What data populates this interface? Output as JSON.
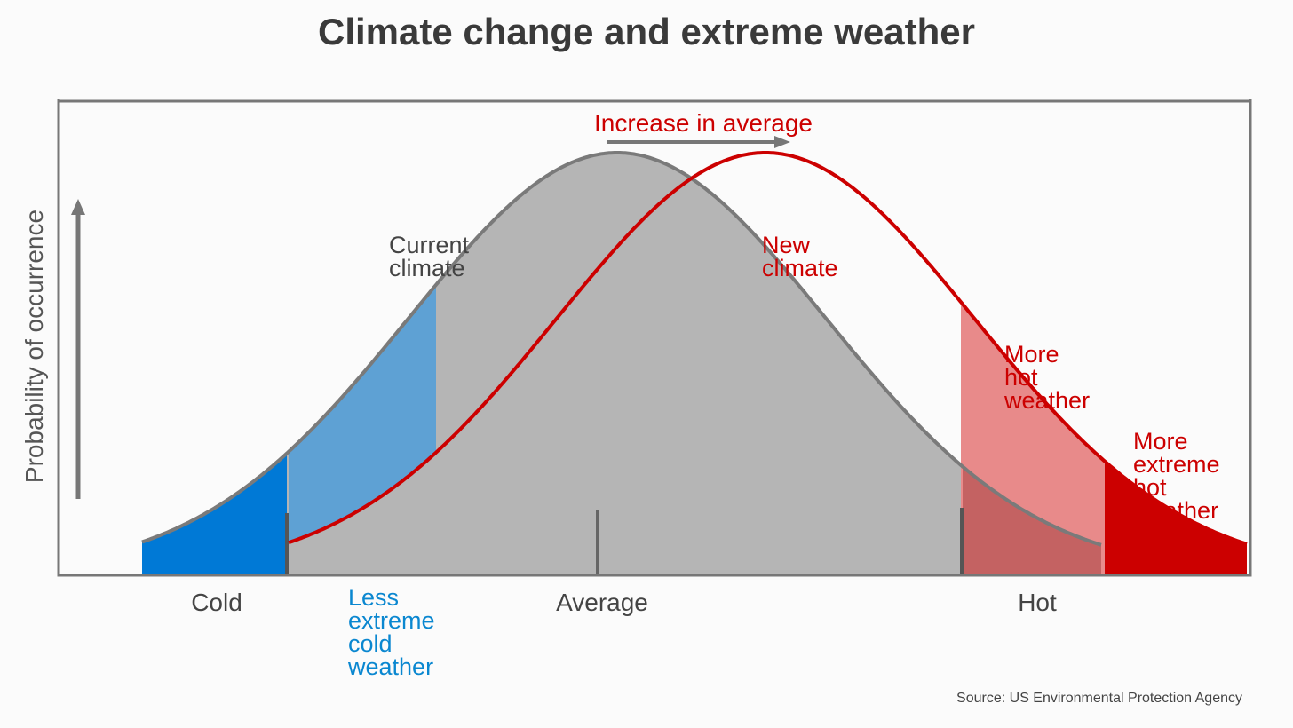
{
  "title": "Climate change and extreme weather",
  "y_axis_label": "Probability of occurrence",
  "x_axis": {
    "cold": "Cold",
    "average": "Average",
    "hot": "Hot"
  },
  "curves": {
    "current": {
      "line1": "Current",
      "line2": "climate",
      "color": "#7a7a7a",
      "fill": "#b5b5b5"
    },
    "new": {
      "line1": "New",
      "line2": "climate",
      "color": "#cc0000"
    }
  },
  "shift_label": "Increase in average",
  "regions": {
    "less_extreme_cold": {
      "lines": [
        "Less",
        "extreme",
        "cold",
        "weather"
      ],
      "color": "#0a87d0"
    },
    "more_hot": {
      "lines": [
        "More",
        "hot",
        "weather"
      ],
      "color": "#cc0000"
    },
    "more_extreme_hot": {
      "lines": [
        "More",
        "extreme",
        "hot",
        "weather"
      ],
      "color": "#cc0000"
    }
  },
  "colors": {
    "cold_tail": "#0079d6",
    "less_cold_tail": "#5ea1d4",
    "hot_region": "#e88a8a",
    "hot_overlap": "#c46262",
    "extreme_hot": "#cc0000",
    "axis": "#777777"
  },
  "source": "Source: US Environmental Protection Agency"
}
